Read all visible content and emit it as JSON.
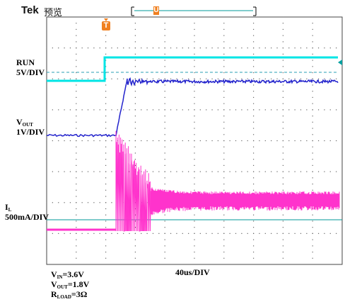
{
  "header": {
    "brand": "Tek",
    "mode": "预览"
  },
  "trigger_marker": "T",
  "cursor_marker": "U",
  "labels": {
    "run": "RUN",
    "ch1_scale": "5V/DIV",
    "vout_main": "V",
    "vout_sub": "OUT",
    "vout_scale": "1V/DIV",
    "il_main": "I",
    "il_sub": "L",
    "il_scale": "500mA/DIV",
    "timebase": "40us/DIV"
  },
  "conditions": {
    "vin_main": "V",
    "vin_sub": "IN",
    "vin_value": "=3.6V",
    "vout_main": "V",
    "vout_sub": "OUT",
    "vout_value": "=1.8V",
    "rload_main": "R",
    "rload_sub": "LOAD",
    "rload_value": "=3Ω"
  },
  "colors": {
    "run": "#00e5e5",
    "vout": "#2222cc",
    "il": "#ff33cc",
    "marker": "#f08020",
    "ref_line": "#009999",
    "grid": "#555555"
  }
}
